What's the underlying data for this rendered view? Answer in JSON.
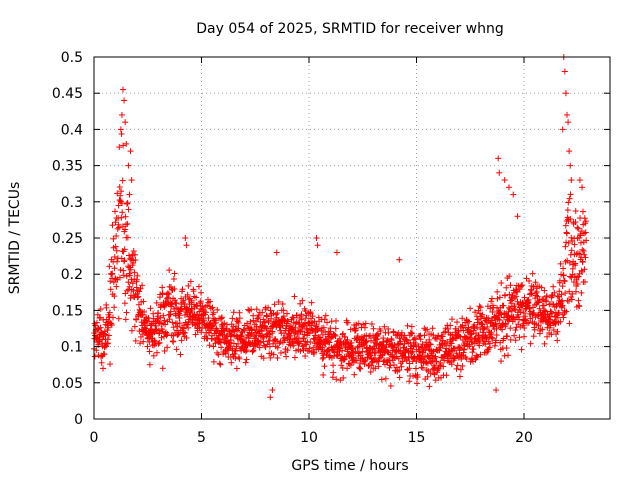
{
  "chart_data": {
    "type": "scatter",
    "title": "Day 054 of 2025, SRMTID for receiver whng",
    "xlabel": "GPS time / hours",
    "ylabel": "SRMTID / TECUs",
    "xlim": [
      0,
      24
    ],
    "ylim": [
      0,
      0.5
    ],
    "xticks": [
      0,
      5,
      10,
      15,
      20
    ],
    "yticks": [
      0,
      0.05,
      0.1,
      0.15,
      0.2,
      0.25,
      0.3,
      0.35,
      0.4,
      0.45,
      0.5
    ],
    "grid": true,
    "marker": "plus",
    "color": "#ff0000",
    "profile": {
      "hours": [
        0.0,
        0.5,
        0.8,
        1.0,
        1.2,
        1.4,
        1.6,
        1.8,
        2.0,
        2.3,
        2.6,
        3.0,
        3.5,
        4.0,
        4.5,
        5.0,
        6.0,
        7.0,
        8.0,
        9.0,
        10.0,
        11.0,
        12.0,
        13.0,
        14.0,
        15.0,
        16.0,
        17.0,
        18.0,
        18.5,
        19.0,
        19.5,
        20.0,
        20.5,
        21.0,
        21.5,
        21.8,
        22.0,
        22.3,
        22.6,
        22.9
      ],
      "median": [
        0.12,
        0.11,
        0.16,
        0.24,
        0.28,
        0.27,
        0.22,
        0.2,
        0.17,
        0.13,
        0.12,
        0.13,
        0.15,
        0.14,
        0.15,
        0.14,
        0.11,
        0.11,
        0.12,
        0.12,
        0.12,
        0.1,
        0.1,
        0.1,
        0.09,
        0.09,
        0.09,
        0.1,
        0.12,
        0.13,
        0.14,
        0.15,
        0.15,
        0.16,
        0.14,
        0.14,
        0.18,
        0.22,
        0.22,
        0.22,
        0.24
      ],
      "spread": [
        0.03,
        0.03,
        0.06,
        0.08,
        0.1,
        0.1,
        0.08,
        0.06,
        0.05,
        0.03,
        0.03,
        0.03,
        0.04,
        0.04,
        0.03,
        0.03,
        0.03,
        0.03,
        0.03,
        0.03,
        0.03,
        0.03,
        0.03,
        0.03,
        0.03,
        0.03,
        0.03,
        0.03,
        0.03,
        0.03,
        0.05,
        0.04,
        0.04,
        0.04,
        0.03,
        0.03,
        0.06,
        0.08,
        0.07,
        0.06,
        0.05
      ],
      "seed": 54
    },
    "points": [
      [
        1.35,
        0.455
      ],
      [
        1.4,
        0.44
      ],
      [
        1.3,
        0.42
      ],
      [
        1.45,
        0.41
      ],
      [
        1.25,
        0.4
      ],
      [
        1.5,
        0.38
      ],
      [
        1.7,
        0.37
      ],
      [
        1.6,
        0.35
      ],
      [
        1.75,
        0.33
      ],
      [
        1.65,
        0.31
      ],
      [
        21.85,
        0.5
      ],
      [
        21.9,
        0.48
      ],
      [
        21.95,
        0.45
      ],
      [
        22.0,
        0.42
      ],
      [
        22.05,
        0.41
      ],
      [
        21.8,
        0.4
      ],
      [
        22.1,
        0.37
      ],
      [
        22.15,
        0.35
      ],
      [
        22.2,
        0.33
      ],
      [
        22.6,
        0.33
      ],
      [
        22.7,
        0.32
      ],
      [
        18.8,
        0.36
      ],
      [
        18.85,
        0.34
      ],
      [
        19.1,
        0.33
      ],
      [
        19.3,
        0.32
      ],
      [
        19.5,
        0.31
      ],
      [
        19.7,
        0.28
      ],
      [
        10.35,
        0.25
      ],
      [
        10.4,
        0.24
      ],
      [
        14.2,
        0.22
      ],
      [
        4.25,
        0.25
      ],
      [
        4.3,
        0.24
      ],
      [
        8.5,
        0.23
      ],
      [
        11.3,
        0.23
      ],
      [
        8.2,
        0.03
      ],
      [
        8.3,
        0.04
      ],
      [
        18.7,
        0.04
      ],
      [
        15.6,
        0.045
      ],
      [
        3.2,
        0.07
      ],
      [
        2.6,
        0.075
      ]
    ]
  }
}
